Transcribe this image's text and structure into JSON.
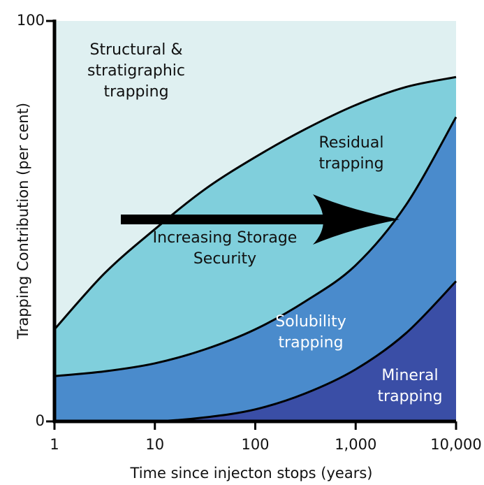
{
  "chart_data": {
    "type": "stacked-area",
    "x_label": "Time since injecton stops (years)",
    "y_label": "Trapping Contribution (per cent)",
    "annotation": "Increasing Storage Security",
    "log_x": true,
    "x": [
      1,
      3.16,
      10,
      31.6,
      100,
      316,
      1000,
      3162,
      10000
    ],
    "xlim": [
      1,
      10000
    ],
    "xticks": [
      1,
      10,
      100,
      {
        "value": 1000,
        "label": "1,000"
      },
      {
        "value": 10000,
        "label": "10,000"
      }
    ],
    "ylim": [
      0,
      100
    ],
    "yticks": [
      0,
      100
    ],
    "series": [
      {
        "name": "Mineral trapping",
        "color": "#3a4ea6",
        "values": [
          0,
          0,
          0,
          1,
          3,
          7,
          13,
          22,
          35
        ]
      },
      {
        "name": "Solubility trapping",
        "color": "#4a8bcc",
        "values": [
          11.3,
          12.5,
          14.5,
          17,
          20,
          23,
          26,
          32,
          41
        ]
      },
      {
        "name": "Residual trapping",
        "color": "#80cfdc",
        "values": [
          11.7,
          24.5,
          33.5,
          40,
          43,
          43,
          40,
          29.5,
          10
        ]
      },
      {
        "name": "Structural & stratigraphic trapping",
        "color": "#dff0f1",
        "values": [
          77,
          63,
          52,
          42,
          34,
          27,
          21,
          16.5,
          14
        ]
      }
    ]
  }
}
